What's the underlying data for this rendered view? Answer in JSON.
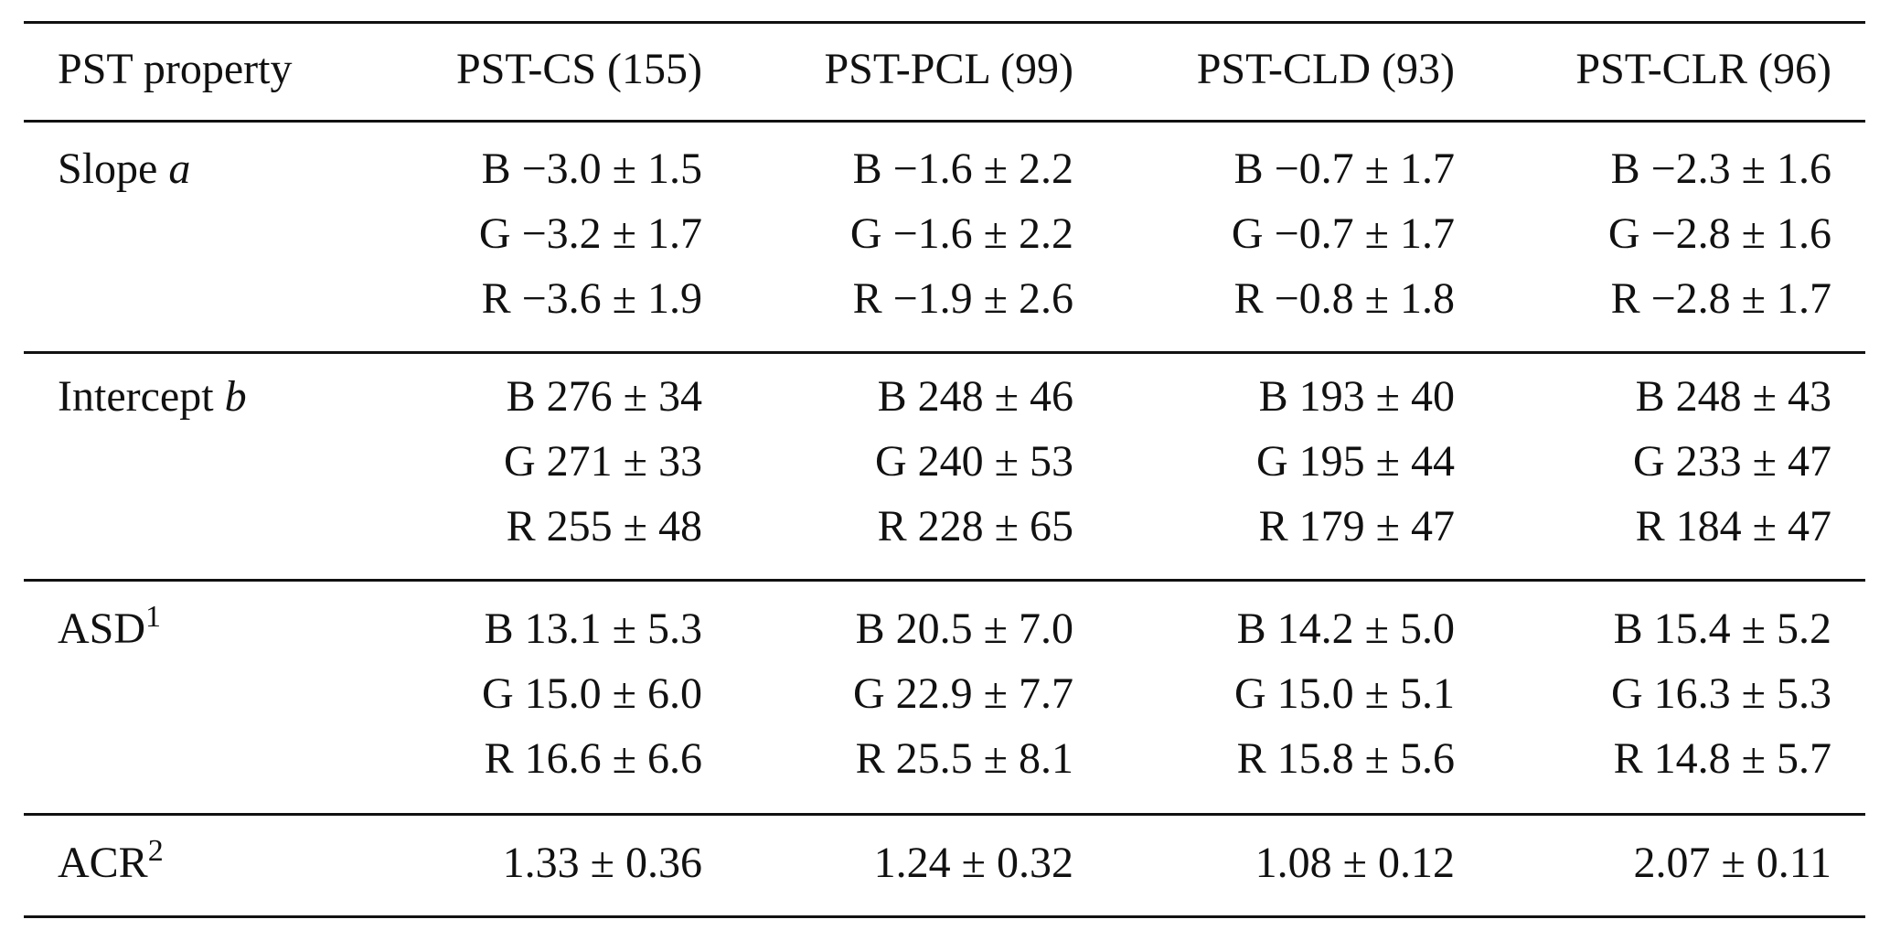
{
  "table": {
    "header": [
      "PST property",
      "PST-CS (155)",
      "PST-PCL (99)",
      "PST-CLD (93)",
      "PST-CLR (96)"
    ],
    "rows": [
      {
        "label": "Slope",
        "label_var": "a",
        "cells": [
          [
            "B −3.0 ± 1.5",
            "G −3.2 ± 1.7",
            "R −3.6 ± 1.9"
          ],
          [
            "B −1.6 ± 2.2",
            "G −1.6 ± 2.2",
            "R −1.9 ± 2.6"
          ],
          [
            "B −0.7 ± 1.7",
            "G −0.7 ± 1.7",
            "R −0.8 ± 1.8"
          ],
          [
            "B −2.3 ± 1.6",
            "G −2.8 ± 1.6",
            "R −2.8 ± 1.7"
          ]
        ]
      },
      {
        "label": "Intercept",
        "label_var": "b",
        "cells": [
          [
            "B 276 ± 34",
            "G 271 ± 33",
            "R 255 ± 48"
          ],
          [
            "B 248 ± 46",
            "G 240 ± 53",
            "R 228 ± 65"
          ],
          [
            "B 193 ± 40",
            "G 195 ± 44",
            "R 179 ± 47"
          ],
          [
            "B 248 ± 43",
            "G 233 ± 47",
            "R 184 ± 47"
          ]
        ]
      },
      {
        "label": "ASD",
        "label_sup": "1",
        "cells": [
          [
            "B 13.1 ± 5.3",
            "G 15.0 ± 6.0",
            "R 16.6 ± 6.6"
          ],
          [
            "B 20.5 ± 7.0",
            "G 22.9 ± 7.7",
            "R 25.5 ± 8.1"
          ],
          [
            "B 14.2 ± 5.0",
            "G 15.0 ± 5.1",
            "R 15.8 ± 5.6"
          ],
          [
            "B 15.4 ± 5.2",
            "G 16.3 ± 5.3",
            "R 14.8 ± 5.7"
          ]
        ]
      },
      {
        "label": "ACR",
        "label_sup": "2",
        "cells": [
          [
            "1.33 ± 0.36"
          ],
          [
            "1.24 ± 0.32"
          ],
          [
            "1.08 ± 0.12"
          ],
          [
            "2.07 ± 0.11"
          ]
        ]
      }
    ]
  }
}
